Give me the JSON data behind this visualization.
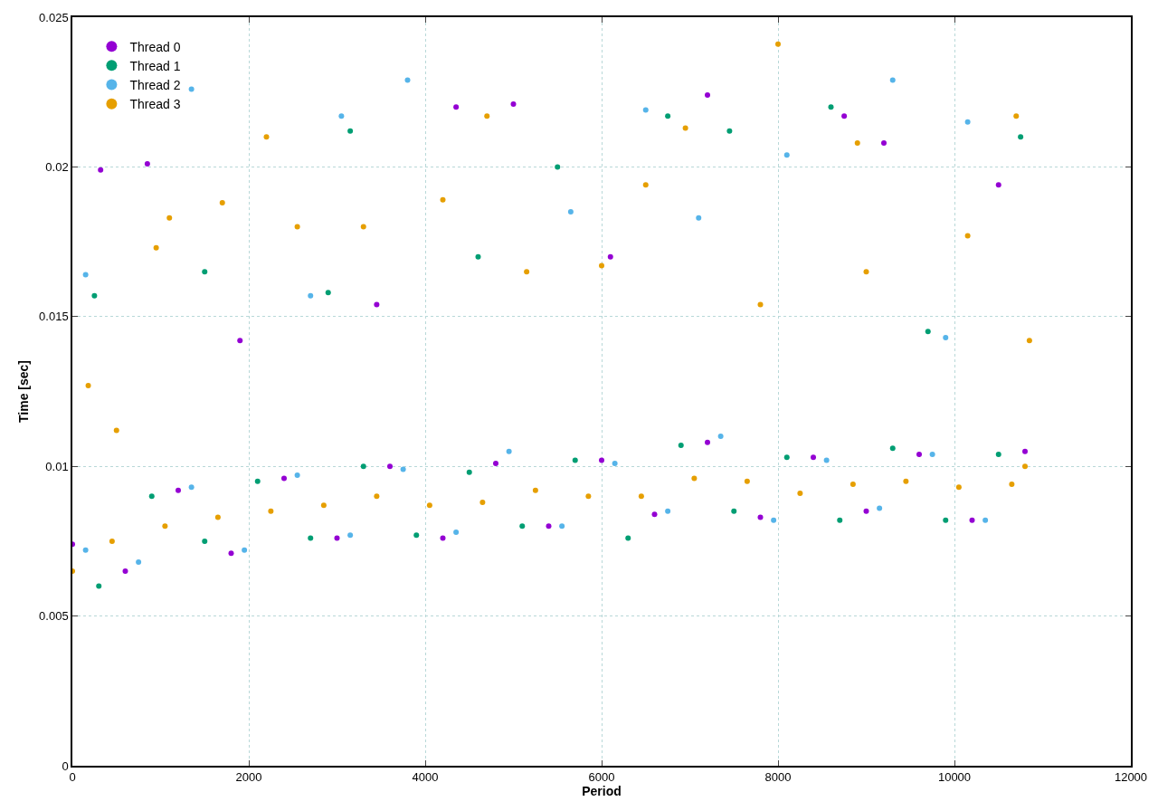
{
  "chart_data": {
    "type": "scatter",
    "xlabel": "Period",
    "ylabel": "Time [sec]",
    "xlim": [
      0,
      12000
    ],
    "xticks": [
      0,
      2000,
      4000,
      6000,
      8000,
      10000,
      12000
    ],
    "ylim": [
      0,
      0.025
    ],
    "yticks": [
      0,
      0.005,
      0.01,
      0.015,
      0.02,
      0.025
    ],
    "grid": true,
    "legend": "top left",
    "marker": "circle",
    "series": [
      {
        "name": "Thread 0",
        "color": "#9400d3",
        "x": [
          0,
          600,
          1200,
          1800,
          2400,
          3000,
          3600,
          4200,
          4800,
          5400,
          6000,
          6600,
          7200,
          7800,
          8400,
          9000,
          9600,
          10200,
          10800,
          5000,
          4350,
          7200,
          8750,
          9200,
          320,
          850,
          3450,
          6100,
          10500,
          1900
        ],
        "values": [
          0.0074,
          0.0065,
          0.0092,
          0.0071,
          0.0096,
          0.0076,
          0.01,
          0.0076,
          0.0101,
          0.008,
          0.0102,
          0.0084,
          0.0108,
          0.0083,
          0.0103,
          0.0085,
          0.0104,
          0.0082,
          0.0105,
          0.0221,
          0.022,
          0.0224,
          0.0217,
          0.0208,
          0.0199,
          0.0201,
          0.0154,
          0.017,
          0.0194,
          0.0142
        ]
      },
      {
        "name": "Thread 1",
        "color": "#009e73",
        "x": [
          300,
          900,
          1500,
          2100,
          2700,
          3300,
          3900,
          4500,
          5100,
          5700,
          6300,
          6900,
          7500,
          8100,
          8700,
          9300,
          9900,
          10500,
          3150,
          7450,
          6750,
          250,
          1500,
          2900,
          5500,
          8600,
          10750,
          4600,
          9700
        ],
        "values": [
          0.006,
          0.009,
          0.0075,
          0.0095,
          0.0076,
          0.01,
          0.0077,
          0.0098,
          0.008,
          0.0102,
          0.0076,
          0.0107,
          0.0085,
          0.0103,
          0.0082,
          0.0106,
          0.0082,
          0.0104,
          0.0212,
          0.0212,
          0.0217,
          0.0157,
          0.0165,
          0.0158,
          0.02,
          0.022,
          0.021,
          0.017,
          0.0145
        ]
      },
      {
        "name": "Thread 2",
        "color": "#56b4e9",
        "x": [
          150,
          750,
          1350,
          1950,
          2550,
          3150,
          3750,
          4350,
          4950,
          5550,
          6150,
          6750,
          7350,
          7950,
          8550,
          9150,
          9750,
          10350,
          3800,
          1350,
          3050,
          6500,
          9300,
          7100,
          10150,
          5650,
          2700,
          8100,
          150,
          9900
        ],
        "values": [
          0.0072,
          0.0068,
          0.0093,
          0.0072,
          0.0097,
          0.0077,
          0.0099,
          0.0078,
          0.0105,
          0.008,
          0.0101,
          0.0085,
          0.011,
          0.0082,
          0.0102,
          0.0086,
          0.0104,
          0.0082,
          0.0229,
          0.0226,
          0.0217,
          0.0219,
          0.0229,
          0.0183,
          0.0215,
          0.0185,
          0.0157,
          0.0204,
          0.0164,
          0.0143
        ]
      },
      {
        "name": "Thread 3",
        "color": "#e69f00",
        "x": [
          0,
          450,
          1050,
          1650,
          2250,
          2850,
          3450,
          4050,
          4650,
          5250,
          5850,
          6450,
          7050,
          7650,
          8250,
          8850,
          9450,
          10050,
          10650,
          10800,
          2200,
          8000,
          4700,
          10700,
          6950,
          1100,
          1700,
          950,
          3300,
          2550,
          6000,
          9000,
          7800,
          10850,
          5150,
          8900,
          6500,
          4200,
          180,
          500,
          10150
        ],
        "values": [
          0.0065,
          0.0075,
          0.008,
          0.0083,
          0.0085,
          0.0087,
          0.009,
          0.0087,
          0.0088,
          0.0092,
          0.009,
          0.009,
          0.0096,
          0.0095,
          0.0091,
          0.0094,
          0.0095,
          0.0093,
          0.0094,
          0.01,
          0.021,
          0.0241,
          0.0217,
          0.0217,
          0.0213,
          0.0183,
          0.0188,
          0.0173,
          0.018,
          0.018,
          0.0167,
          0.0165,
          0.0154,
          0.0142,
          0.0165,
          0.0208,
          0.0194,
          0.0189,
          0.0127,
          0.0112,
          0.0177
        ]
      }
    ]
  }
}
